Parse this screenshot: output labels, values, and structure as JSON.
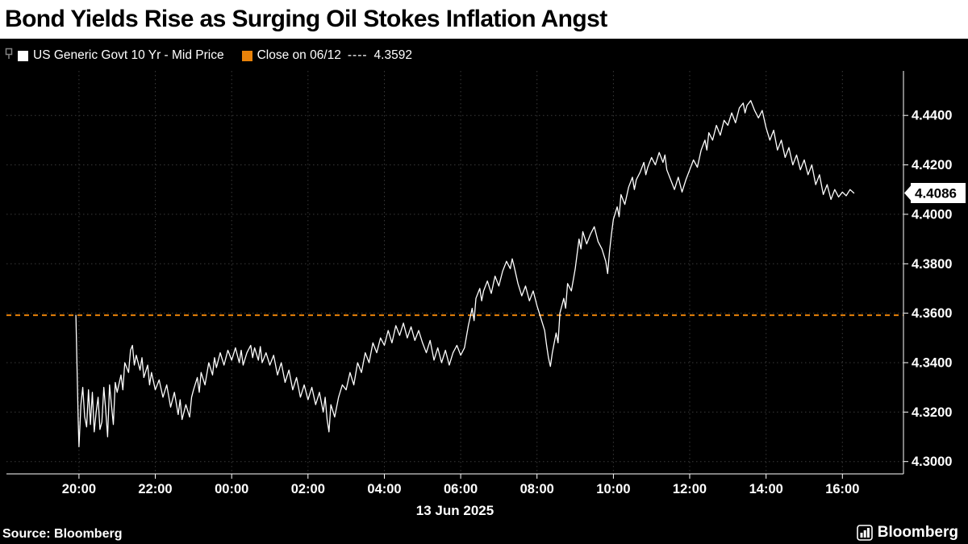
{
  "title": "Bond Yields Rise as Surging Oil Stokes Inflation Angst",
  "legend": {
    "series_label": "US Generic Govt 10 Yr - Mid Price",
    "close_label": "Close on 06/12",
    "close_dashes": "----",
    "close_value": "4.3592"
  },
  "footer": {
    "source": "Source: Bloomberg",
    "logo": "Bloomberg"
  },
  "colors": {
    "background": "#000000",
    "title_bg": "#ffffff",
    "title_fg": "#000000",
    "series": "#ffffff",
    "close_line": "#e8820a",
    "grid": "#3a3a3a",
    "axis": "#ffffff",
    "price_tag_bg": "#ffffff",
    "price_tag_fg": "#000000"
  },
  "chart_data": {
    "type": "line",
    "title": "Bond Yields Rise as Surging Oil Stokes Inflation Angst",
    "series_name": "US Generic Govt 10 Yr - Mid Price",
    "x_axis": {
      "date_label": "13 Jun 2025",
      "domain": [
        -1.9,
        21.6
      ],
      "tick_hours": [
        0,
        2,
        4,
        6,
        8,
        10,
        12,
        14,
        16,
        18,
        20
      ],
      "tick_labels": [
        "20:00",
        "22:00",
        "00:00",
        "02:00",
        "04:00",
        "06:00",
        "08:00",
        "10:00",
        "12:00",
        "14:00",
        "16:00"
      ]
    },
    "y_axis": {
      "domain": [
        4.295,
        4.458
      ],
      "tick_values": [
        4.3,
        4.32,
        4.34,
        4.36,
        4.38,
        4.4,
        4.42,
        4.44
      ],
      "tick_labels": [
        "4.3000",
        "4.3200",
        "4.3400",
        "4.3600",
        "4.3800",
        "4.4000",
        "4.4200",
        "4.4400"
      ]
    },
    "close_line_value": 4.3592,
    "last_price": 4.4086,
    "last_price_label": "4.4086",
    "points": [
      [
        -0.08,
        4.3592
      ],
      [
        -0.05,
        4.338
      ],
      [
        -0.02,
        4.316
      ],
      [
        0,
        4.306
      ],
      [
        0.05,
        4.323
      ],
      [
        0.1,
        4.33
      ],
      [
        0.15,
        4.318
      ],
      [
        0.2,
        4.314
      ],
      [
        0.25,
        4.329
      ],
      [
        0.3,
        4.315
      ],
      [
        0.35,
        4.328
      ],
      [
        0.4,
        4.312
      ],
      [
        0.45,
        4.32
      ],
      [
        0.5,
        4.326
      ],
      [
        0.55,
        4.313
      ],
      [
        0.6,
        4.316
      ],
      [
        0.65,
        4.33
      ],
      [
        0.7,
        4.321
      ],
      [
        0.75,
        4.31
      ],
      [
        0.8,
        4.331
      ],
      [
        0.85,
        4.323
      ],
      [
        0.9,
        4.315
      ],
      [
        0.95,
        4.332
      ],
      [
        1.0,
        4.328
      ],
      [
        1.1,
        4.335
      ],
      [
        1.15,
        4.329
      ],
      [
        1.2,
        4.34
      ],
      [
        1.3,
        4.336
      ],
      [
        1.35,
        4.345
      ],
      [
        1.4,
        4.347
      ],
      [
        1.45,
        4.339
      ],
      [
        1.5,
        4.343
      ],
      [
        1.6,
        4.337
      ],
      [
        1.65,
        4.342
      ],
      [
        1.7,
        4.334
      ],
      [
        1.8,
        4.339
      ],
      [
        1.85,
        4.331
      ],
      [
        1.9,
        4.336
      ],
      [
        2.0,
        4.329
      ],
      [
        2.1,
        4.333
      ],
      [
        2.2,
        4.326
      ],
      [
        2.3,
        4.331
      ],
      [
        2.4,
        4.322
      ],
      [
        2.5,
        4.328
      ],
      [
        2.6,
        4.319
      ],
      [
        2.65,
        4.325
      ],
      [
        2.7,
        4.317
      ],
      [
        2.8,
        4.323
      ],
      [
        2.9,
        4.318
      ],
      [
        2.95,
        4.326
      ],
      [
        3.0,
        4.329
      ],
      [
        3.1,
        4.334
      ],
      [
        3.15,
        4.328
      ],
      [
        3.2,
        4.336
      ],
      [
        3.3,
        4.331
      ],
      [
        3.4,
        4.34
      ],
      [
        3.5,
        4.335
      ],
      [
        3.55,
        4.342
      ],
      [
        3.6,
        4.338
      ],
      [
        3.7,
        4.344
      ],
      [
        3.8,
        4.339
      ],
      [
        3.9,
        4.345
      ],
      [
        4.0,
        4.341
      ],
      [
        4.1,
        4.346
      ],
      [
        4.2,
        4.34
      ],
      [
        4.25,
        4.345
      ],
      [
        4.3,
        4.339
      ],
      [
        4.4,
        4.344
      ],
      [
        4.5,
        4.347
      ],
      [
        4.55,
        4.342
      ],
      [
        4.6,
        4.346
      ],
      [
        4.7,
        4.341
      ],
      [
        4.75,
        4.3465
      ],
      [
        4.8,
        4.34
      ],
      [
        4.9,
        4.344
      ],
      [
        5.0,
        4.339
      ],
      [
        5.1,
        4.343
      ],
      [
        5.2,
        4.335
      ],
      [
        5.3,
        4.34
      ],
      [
        5.4,
        4.332
      ],
      [
        5.5,
        4.337
      ],
      [
        5.6,
        4.329
      ],
      [
        5.7,
        4.334
      ],
      [
        5.8,
        4.326
      ],
      [
        5.9,
        4.331
      ],
      [
        6.0,
        4.325
      ],
      [
        6.1,
        4.33
      ],
      [
        6.2,
        4.323
      ],
      [
        6.3,
        4.328
      ],
      [
        6.4,
        4.32
      ],
      [
        6.45,
        4.326
      ],
      [
        6.5,
        4.317
      ],
      [
        6.55,
        4.312
      ],
      [
        6.6,
        4.323
      ],
      [
        6.7,
        4.318
      ],
      [
        6.8,
        4.326
      ],
      [
        6.9,
        4.331
      ],
      [
        7.0,
        4.329
      ],
      [
        7.1,
        4.336
      ],
      [
        7.2,
        4.331
      ],
      [
        7.3,
        4.34
      ],
      [
        7.4,
        4.336
      ],
      [
        7.5,
        4.344
      ],
      [
        7.6,
        4.34
      ],
      [
        7.7,
        4.348
      ],
      [
        7.8,
        4.344
      ],
      [
        7.9,
        4.35
      ],
      [
        8.0,
        4.347
      ],
      [
        8.1,
        4.353
      ],
      [
        8.2,
        4.348
      ],
      [
        8.3,
        4.355
      ],
      [
        8.4,
        4.351
      ],
      [
        8.5,
        4.356
      ],
      [
        8.6,
        4.35
      ],
      [
        8.7,
        4.3545
      ],
      [
        8.8,
        4.349
      ],
      [
        8.9,
        4.353
      ],
      [
        9.0,
        4.348
      ],
      [
        9.1,
        4.344
      ],
      [
        9.2,
        4.349
      ],
      [
        9.3,
        4.341
      ],
      [
        9.4,
        4.346
      ],
      [
        9.5,
        4.34
      ],
      [
        9.6,
        4.345
      ],
      [
        9.7,
        4.339
      ],
      [
        9.8,
        4.344
      ],
      [
        9.9,
        4.347
      ],
      [
        10.0,
        4.343
      ],
      [
        10.1,
        4.346
      ],
      [
        10.2,
        4.355
      ],
      [
        10.3,
        4.362
      ],
      [
        10.35,
        4.357
      ],
      [
        10.4,
        4.366
      ],
      [
        10.5,
        4.37
      ],
      [
        10.55,
        4.365
      ],
      [
        10.6,
        4.369
      ],
      [
        10.7,
        4.373
      ],
      [
        10.8,
        4.368
      ],
      [
        10.9,
        4.375
      ],
      [
        11.0,
        4.371
      ],
      [
        11.1,
        4.377
      ],
      [
        11.2,
        4.381
      ],
      [
        11.3,
        4.378
      ],
      [
        11.35,
        4.382
      ],
      [
        11.4,
        4.379
      ],
      [
        11.5,
        4.372
      ],
      [
        11.6,
        4.367
      ],
      [
        11.7,
        4.371
      ],
      [
        11.8,
        4.365
      ],
      [
        11.9,
        4.369
      ],
      [
        12.0,
        4.363
      ],
      [
        12.1,
        4.358
      ],
      [
        12.2,
        4.353
      ],
      [
        12.25,
        4.347
      ],
      [
        12.3,
        4.342
      ],
      [
        12.35,
        4.3385
      ],
      [
        12.4,
        4.344
      ],
      [
        12.5,
        4.352
      ],
      [
        12.55,
        4.348
      ],
      [
        12.6,
        4.36
      ],
      [
        12.7,
        4.366
      ],
      [
        12.75,
        4.362
      ],
      [
        12.8,
        4.372
      ],
      [
        12.9,
        4.369
      ],
      [
        13.0,
        4.378
      ],
      [
        13.1,
        4.39
      ],
      [
        13.15,
        4.386
      ],
      [
        13.2,
        4.393
      ],
      [
        13.3,
        4.388
      ],
      [
        13.4,
        4.392
      ],
      [
        13.5,
        4.395
      ],
      [
        13.6,
        4.389
      ],
      [
        13.7,
        4.386
      ],
      [
        13.8,
        4.381
      ],
      [
        13.85,
        4.376
      ],
      [
        13.9,
        4.385
      ],
      [
        13.95,
        4.392
      ],
      [
        14.0,
        4.398
      ],
      [
        14.1,
        4.403
      ],
      [
        14.15,
        4.399
      ],
      [
        14.2,
        4.408
      ],
      [
        14.3,
        4.404
      ],
      [
        14.4,
        4.411
      ],
      [
        14.5,
        4.415
      ],
      [
        14.55,
        4.41
      ],
      [
        14.6,
        4.414
      ],
      [
        14.7,
        4.417
      ],
      [
        14.8,
        4.421
      ],
      [
        14.85,
        4.416
      ],
      [
        14.9,
        4.419
      ],
      [
        15.0,
        4.423
      ],
      [
        15.1,
        4.42
      ],
      [
        15.2,
        4.425
      ],
      [
        15.3,
        4.421
      ],
      [
        15.35,
        4.424
      ],
      [
        15.4,
        4.418
      ],
      [
        15.5,
        4.414
      ],
      [
        15.6,
        4.41
      ],
      [
        15.7,
        4.415
      ],
      [
        15.8,
        4.409
      ],
      [
        15.9,
        4.414
      ],
      [
        16.0,
        4.418
      ],
      [
        16.1,
        4.422
      ],
      [
        16.2,
        4.419
      ],
      [
        16.3,
        4.426
      ],
      [
        16.4,
        4.43
      ],
      [
        16.45,
        4.426
      ],
      [
        16.5,
        4.433
      ],
      [
        16.6,
        4.43
      ],
      [
        16.7,
        4.436
      ],
      [
        16.8,
        4.432
      ],
      [
        16.9,
        4.438
      ],
      [
        17.0,
        4.436
      ],
      [
        17.1,
        4.441
      ],
      [
        17.2,
        4.437
      ],
      [
        17.3,
        4.443
      ],
      [
        17.4,
        4.445
      ],
      [
        17.45,
        4.441
      ],
      [
        17.5,
        4.444
      ],
      [
        17.6,
        4.446
      ],
      [
        17.7,
        4.442
      ],
      [
        17.8,
        4.439
      ],
      [
        17.9,
        4.442
      ],
      [
        18.0,
        4.435
      ],
      [
        18.1,
        4.43
      ],
      [
        18.2,
        4.434
      ],
      [
        18.3,
        4.426
      ],
      [
        18.4,
        4.43
      ],
      [
        18.5,
        4.423
      ],
      [
        18.6,
        4.427
      ],
      [
        18.7,
        4.42
      ],
      [
        18.8,
        4.424
      ],
      [
        18.9,
        4.418
      ],
      [
        19.0,
        4.422
      ],
      [
        19.1,
        4.416
      ],
      [
        19.2,
        4.42
      ],
      [
        19.3,
        4.412
      ],
      [
        19.4,
        4.416
      ],
      [
        19.5,
        4.408
      ],
      [
        19.6,
        4.412
      ],
      [
        19.7,
        4.406
      ],
      [
        19.8,
        4.41
      ],
      [
        19.9,
        4.407
      ],
      [
        20.0,
        4.409
      ],
      [
        20.1,
        4.4075
      ],
      [
        20.2,
        4.41
      ],
      [
        20.3,
        4.4086
      ]
    ]
  }
}
